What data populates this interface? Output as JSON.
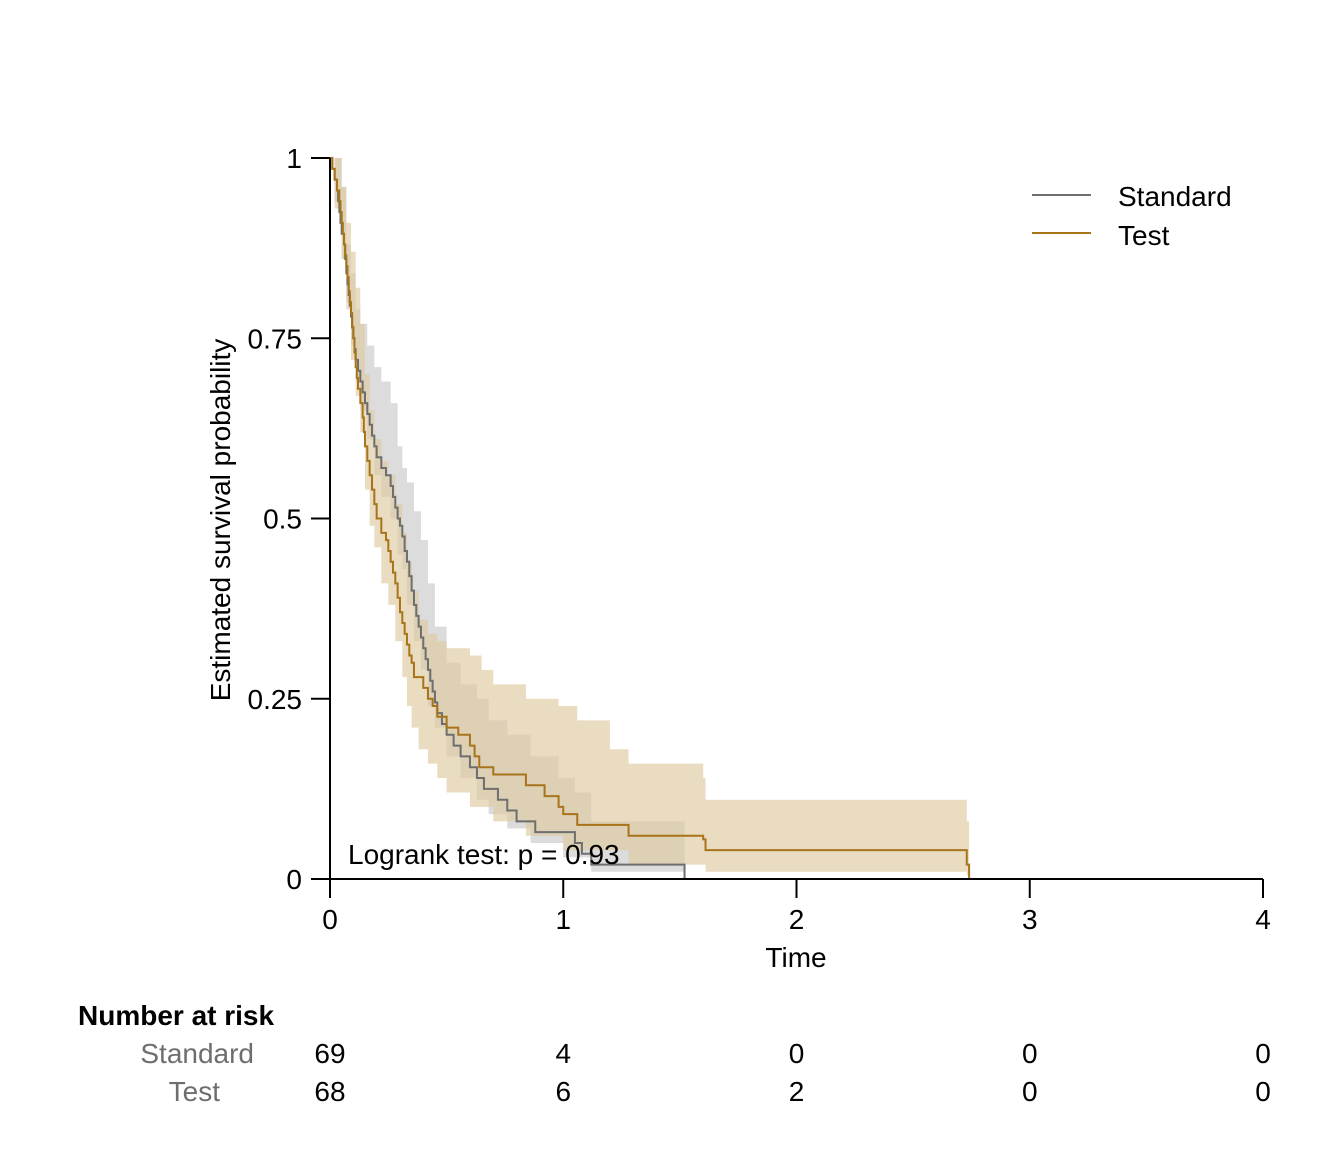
{
  "chart_data": {
    "type": "line",
    "subtype": "kaplan-meier",
    "title": "",
    "xlabel": "Time",
    "ylabel": "Estimated survival probability",
    "xlim": [
      0,
      4
    ],
    "ylim": [
      0,
      1
    ],
    "x_ticks": [
      0,
      1,
      2,
      3,
      4
    ],
    "y_ticks": [
      0,
      0.25,
      0.5,
      0.75,
      1
    ],
    "y_tick_labels": [
      "0",
      "0.25",
      "0.5",
      "0.75",
      "1"
    ],
    "grid": false,
    "legend_position": "top-right",
    "annotation": "Logrank test: p =  0.93",
    "series": [
      {
        "name": "Standard",
        "color": "#6e6e6e",
        "band_color": "#d6d6d6",
        "band_opacity": 0.85,
        "points": [
          [
            0,
            1.0
          ],
          [
            0.01,
            0.985
          ],
          [
            0.02,
            0.97
          ],
          [
            0.03,
            0.955
          ],
          [
            0.035,
            0.94
          ],
          [
            0.04,
            0.925
          ],
          [
            0.045,
            0.91
          ],
          [
            0.05,
            0.895
          ],
          [
            0.06,
            0.88
          ],
          [
            0.065,
            0.86
          ],
          [
            0.07,
            0.84
          ],
          [
            0.075,
            0.825
          ],
          [
            0.08,
            0.81
          ],
          [
            0.085,
            0.795
          ],
          [
            0.09,
            0.78
          ],
          [
            0.095,
            0.765
          ],
          [
            0.1,
            0.75
          ],
          [
            0.105,
            0.735
          ],
          [
            0.11,
            0.72
          ],
          [
            0.12,
            0.705
          ],
          [
            0.13,
            0.69
          ],
          [
            0.14,
            0.675
          ],
          [
            0.15,
            0.66
          ],
          [
            0.16,
            0.645
          ],
          [
            0.17,
            0.63
          ],
          [
            0.18,
            0.615
          ],
          [
            0.19,
            0.6
          ],
          [
            0.2,
            0.585
          ],
          [
            0.22,
            0.57
          ],
          [
            0.24,
            0.56
          ],
          [
            0.26,
            0.545
          ],
          [
            0.27,
            0.53
          ],
          [
            0.28,
            0.515
          ],
          [
            0.29,
            0.5
          ],
          [
            0.3,
            0.49
          ],
          [
            0.31,
            0.475
          ],
          [
            0.32,
            0.455
          ],
          [
            0.33,
            0.44
          ],
          [
            0.34,
            0.42
          ],
          [
            0.35,
            0.4
          ],
          [
            0.36,
            0.38
          ],
          [
            0.37,
            0.365
          ],
          [
            0.38,
            0.35
          ],
          [
            0.39,
            0.335
          ],
          [
            0.4,
            0.32
          ],
          [
            0.41,
            0.305
          ],
          [
            0.42,
            0.29
          ],
          [
            0.43,
            0.275
          ],
          [
            0.44,
            0.26
          ],
          [
            0.45,
            0.245
          ],
          [
            0.46,
            0.23
          ],
          [
            0.48,
            0.215
          ],
          [
            0.5,
            0.2
          ],
          [
            0.53,
            0.185
          ],
          [
            0.56,
            0.17
          ],
          [
            0.6,
            0.155
          ],
          [
            0.63,
            0.14
          ],
          [
            0.66,
            0.125
          ],
          [
            0.72,
            0.11
          ],
          [
            0.76,
            0.095
          ],
          [
            0.8,
            0.08
          ],
          [
            0.88,
            0.065
          ],
          [
            1.05,
            0.05
          ],
          [
            1.08,
            0.035
          ],
          [
            1.12,
            0.02
          ],
          [
            1.52,
            0.0
          ]
        ],
        "lower": [
          [
            0,
            1.0
          ],
          [
            0.02,
            0.94
          ],
          [
            0.05,
            0.86
          ],
          [
            0.07,
            0.8
          ],
          [
            0.09,
            0.74
          ],
          [
            0.11,
            0.69
          ],
          [
            0.13,
            0.65
          ],
          [
            0.16,
            0.61
          ],
          [
            0.19,
            0.56
          ],
          [
            0.22,
            0.53
          ],
          [
            0.26,
            0.5
          ],
          [
            0.29,
            0.45
          ],
          [
            0.31,
            0.43
          ],
          [
            0.33,
            0.38
          ],
          [
            0.36,
            0.33
          ],
          [
            0.39,
            0.29
          ],
          [
            0.42,
            0.24
          ],
          [
            0.45,
            0.21
          ],
          [
            0.5,
            0.17
          ],
          [
            0.56,
            0.14
          ],
          [
            0.63,
            0.11
          ],
          [
            0.68,
            0.09
          ],
          [
            0.76,
            0.07
          ],
          [
            0.86,
            0.05
          ],
          [
            1.0,
            0.03
          ],
          [
            1.12,
            0.01
          ],
          [
            1.52,
            0.0
          ]
        ],
        "upper": [
          [
            0,
            1.0
          ],
          [
            0.02,
            1.0
          ],
          [
            0.05,
            0.96
          ],
          [
            0.07,
            0.88
          ],
          [
            0.09,
            0.84
          ],
          [
            0.11,
            0.79
          ],
          [
            0.13,
            0.77
          ],
          [
            0.16,
            0.74
          ],
          [
            0.19,
            0.71
          ],
          [
            0.22,
            0.69
          ],
          [
            0.26,
            0.66
          ],
          [
            0.29,
            0.6
          ],
          [
            0.31,
            0.57
          ],
          [
            0.33,
            0.55
          ],
          [
            0.36,
            0.51
          ],
          [
            0.39,
            0.47
          ],
          [
            0.42,
            0.41
          ],
          [
            0.45,
            0.35
          ],
          [
            0.5,
            0.3
          ],
          [
            0.56,
            0.27
          ],
          [
            0.63,
            0.25
          ],
          [
            0.68,
            0.22
          ],
          [
            0.76,
            0.2
          ],
          [
            0.86,
            0.17
          ],
          [
            0.98,
            0.14
          ],
          [
            1.05,
            0.12
          ],
          [
            1.12,
            0.08
          ],
          [
            1.52,
            0.0
          ]
        ]
      },
      {
        "name": "Test",
        "color": "#a8741a",
        "band_color": "#ddc9a0",
        "band_opacity": 0.65,
        "points": [
          [
            0,
            1.0
          ],
          [
            0.01,
            0.985
          ],
          [
            0.02,
            0.97
          ],
          [
            0.03,
            0.955
          ],
          [
            0.04,
            0.94
          ],
          [
            0.045,
            0.925
          ],
          [
            0.05,
            0.91
          ],
          [
            0.055,
            0.895
          ],
          [
            0.06,
            0.88
          ],
          [
            0.065,
            0.865
          ],
          [
            0.07,
            0.85
          ],
          [
            0.075,
            0.835
          ],
          [
            0.08,
            0.815
          ],
          [
            0.085,
            0.8
          ],
          [
            0.09,
            0.785
          ],
          [
            0.095,
            0.765
          ],
          [
            0.1,
            0.75
          ],
          [
            0.105,
            0.73
          ],
          [
            0.11,
            0.71
          ],
          [
            0.115,
            0.695
          ],
          [
            0.12,
            0.68
          ],
          [
            0.13,
            0.66
          ],
          [
            0.14,
            0.64
          ],
          [
            0.145,
            0.62
          ],
          [
            0.15,
            0.6
          ],
          [
            0.16,
            0.58
          ],
          [
            0.17,
            0.56
          ],
          [
            0.18,
            0.54
          ],
          [
            0.19,
            0.52
          ],
          [
            0.2,
            0.5
          ],
          [
            0.22,
            0.48
          ],
          [
            0.24,
            0.47
          ],
          [
            0.25,
            0.455
          ],
          [
            0.26,
            0.44
          ],
          [
            0.27,
            0.425
          ],
          [
            0.28,
            0.41
          ],
          [
            0.29,
            0.39
          ],
          [
            0.3,
            0.37
          ],
          [
            0.31,
            0.355
          ],
          [
            0.32,
            0.34
          ],
          [
            0.33,
            0.325
          ],
          [
            0.34,
            0.31
          ],
          [
            0.35,
            0.3
          ],
          [
            0.36,
            0.28
          ],
          [
            0.38,
            0.28
          ],
          [
            0.4,
            0.265
          ],
          [
            0.42,
            0.25
          ],
          [
            0.44,
            0.24
          ],
          [
            0.46,
            0.225
          ],
          [
            0.5,
            0.21
          ],
          [
            0.55,
            0.2
          ],
          [
            0.6,
            0.185
          ],
          [
            0.62,
            0.17
          ],
          [
            0.64,
            0.155
          ],
          [
            0.7,
            0.145
          ],
          [
            0.78,
            0.145
          ],
          [
            0.84,
            0.13
          ],
          [
            0.92,
            0.115
          ],
          [
            0.98,
            0.1
          ],
          [
            1.0,
            0.09
          ],
          [
            1.06,
            0.075
          ],
          [
            1.2,
            0.075
          ],
          [
            1.28,
            0.06
          ],
          [
            1.6,
            0.055
          ],
          [
            1.61,
            0.04
          ],
          [
            2.7,
            0.04
          ],
          [
            2.73,
            0.02
          ],
          [
            2.74,
            0.0
          ]
        ],
        "lower": [
          [
            0,
            1.0
          ],
          [
            0.02,
            0.93
          ],
          [
            0.05,
            0.86
          ],
          [
            0.07,
            0.79
          ],
          [
            0.09,
            0.72
          ],
          [
            0.11,
            0.67
          ],
          [
            0.13,
            0.62
          ],
          [
            0.15,
            0.54
          ],
          [
            0.17,
            0.49
          ],
          [
            0.19,
            0.46
          ],
          [
            0.22,
            0.41
          ],
          [
            0.25,
            0.38
          ],
          [
            0.28,
            0.33
          ],
          [
            0.31,
            0.28
          ],
          [
            0.33,
            0.24
          ],
          [
            0.35,
            0.21
          ],
          [
            0.38,
            0.18
          ],
          [
            0.42,
            0.16
          ],
          [
            0.46,
            0.14
          ],
          [
            0.5,
            0.12
          ],
          [
            0.6,
            0.1
          ],
          [
            0.7,
            0.08
          ],
          [
            0.84,
            0.06
          ],
          [
            1.0,
            0.04
          ],
          [
            1.28,
            0.02
          ],
          [
            1.61,
            0.01
          ],
          [
            2.73,
            0.005
          ],
          [
            2.74,
            0.0
          ]
        ],
        "upper": [
          [
            0,
            1.0
          ],
          [
            0.02,
            1.0
          ],
          [
            0.05,
            0.96
          ],
          [
            0.07,
            0.91
          ],
          [
            0.09,
            0.87
          ],
          [
            0.11,
            0.82
          ],
          [
            0.13,
            0.77
          ],
          [
            0.15,
            0.7
          ],
          [
            0.17,
            0.65
          ],
          [
            0.19,
            0.61
          ],
          [
            0.22,
            0.58
          ],
          [
            0.25,
            0.56
          ],
          [
            0.28,
            0.52
          ],
          [
            0.31,
            0.48
          ],
          [
            0.33,
            0.44
          ],
          [
            0.35,
            0.4
          ],
          [
            0.38,
            0.36
          ],
          [
            0.42,
            0.34
          ],
          [
            0.46,
            0.33
          ],
          [
            0.5,
            0.32
          ],
          [
            0.6,
            0.31
          ],
          [
            0.65,
            0.29
          ],
          [
            0.7,
            0.27
          ],
          [
            0.84,
            0.25
          ],
          [
            0.98,
            0.24
          ],
          [
            1.06,
            0.22
          ],
          [
            1.2,
            0.18
          ],
          [
            1.28,
            0.16
          ],
          [
            1.6,
            0.14
          ],
          [
            1.61,
            0.11
          ],
          [
            2.7,
            0.11
          ],
          [
            2.73,
            0.08
          ],
          [
            2.74,
            0.0
          ]
        ]
      }
    ]
  },
  "risk_table": {
    "title": "Number at risk",
    "times": [
      0,
      1,
      2,
      3,
      4
    ],
    "rows": [
      {
        "group": "Standard",
        "counts": [
          69,
          4,
          0,
          0,
          0
        ]
      },
      {
        "group": "Test",
        "counts": [
          68,
          6,
          2,
          0,
          0
        ]
      }
    ]
  }
}
